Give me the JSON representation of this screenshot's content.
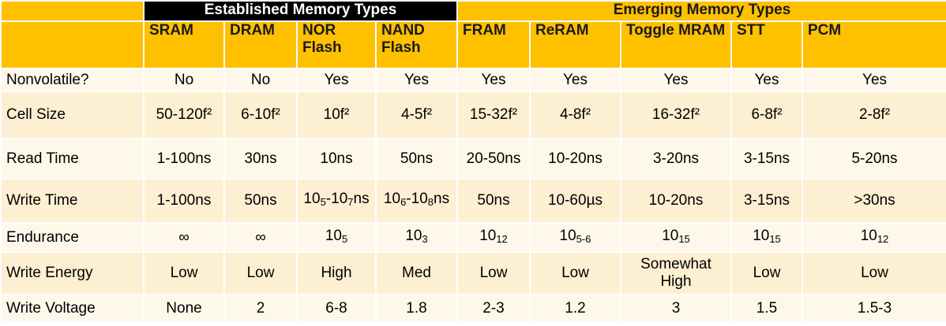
{
  "header": {
    "groups": [
      "Established Memory Types",
      "Emerging Memory Types"
    ],
    "columns": [
      "SRAM",
      "DRAM",
      "NOR Flash",
      "NAND Flash",
      "FRAM",
      "ReRAM",
      "Toggle MRAM",
      "STT",
      "PCM"
    ]
  },
  "table": {
    "rows": [
      {
        "label": "Nonvolatile?",
        "cells": [
          "No",
          "No",
          "Yes",
          "Yes",
          "Yes",
          "Yes",
          "Yes",
          "Yes",
          "Yes"
        ]
      },
      {
        "label": "Cell Size",
        "cells": [
          "50-120f²",
          "6-10f²",
          "10f²",
          "4-5f²",
          "15-32f²",
          "4-8f²",
          "16-32f²",
          "6-8f²",
          "2-8f²"
        ]
      },
      {
        "label": "Read Time",
        "cells": [
          "1-100ns",
          "30ns",
          "10ns",
          "50ns",
          "20-50ns",
          "10-20ns",
          "3-20ns",
          "3-15ns",
          "5-20ns"
        ]
      },
      {
        "label": "Write Time",
        "cells": [
          "1-100ns",
          "50ns",
          [
            {
              "text": "10"
            },
            {
              "sub": "5"
            },
            {
              "text": "-10"
            },
            {
              "sub": "7"
            },
            {
              "text": "ns"
            }
          ],
          [
            {
              "text": "10"
            },
            {
              "sub": "6"
            },
            {
              "text": "-10"
            },
            {
              "sub": "8"
            },
            {
              "text": "ns"
            }
          ],
          "50ns",
          "10-60µs",
          "10-20ns",
          "3-15ns",
          ">30ns"
        ]
      },
      {
        "label": "Endurance",
        "cells": [
          "∞",
          "∞",
          [
            {
              "text": "10"
            },
            {
              "sub": "5"
            }
          ],
          [
            {
              "text": "10"
            },
            {
              "sub": "3"
            }
          ],
          [
            {
              "text": "10"
            },
            {
              "sub": "12"
            }
          ],
          [
            {
              "text": "10"
            },
            {
              "sub": "5-6"
            }
          ],
          [
            {
              "text": "10"
            },
            {
              "sub": "15"
            }
          ],
          [
            {
              "text": "10"
            },
            {
              "sub": "15"
            }
          ],
          [
            {
              "text": "10"
            },
            {
              "sub": "12"
            }
          ]
        ]
      },
      {
        "label": "Write Energy",
        "cells": [
          "Low",
          "Low",
          "High",
          "Med",
          "Low",
          "Low",
          "Somewhat High",
          "Low",
          "Low"
        ]
      },
      {
        "label": "Write Voltage",
        "cells": [
          "None",
          "2",
          "6-8",
          "1.8",
          "2-3",
          "1.2",
          "3",
          "1.5",
          "1.5-3"
        ]
      }
    ]
  }
}
